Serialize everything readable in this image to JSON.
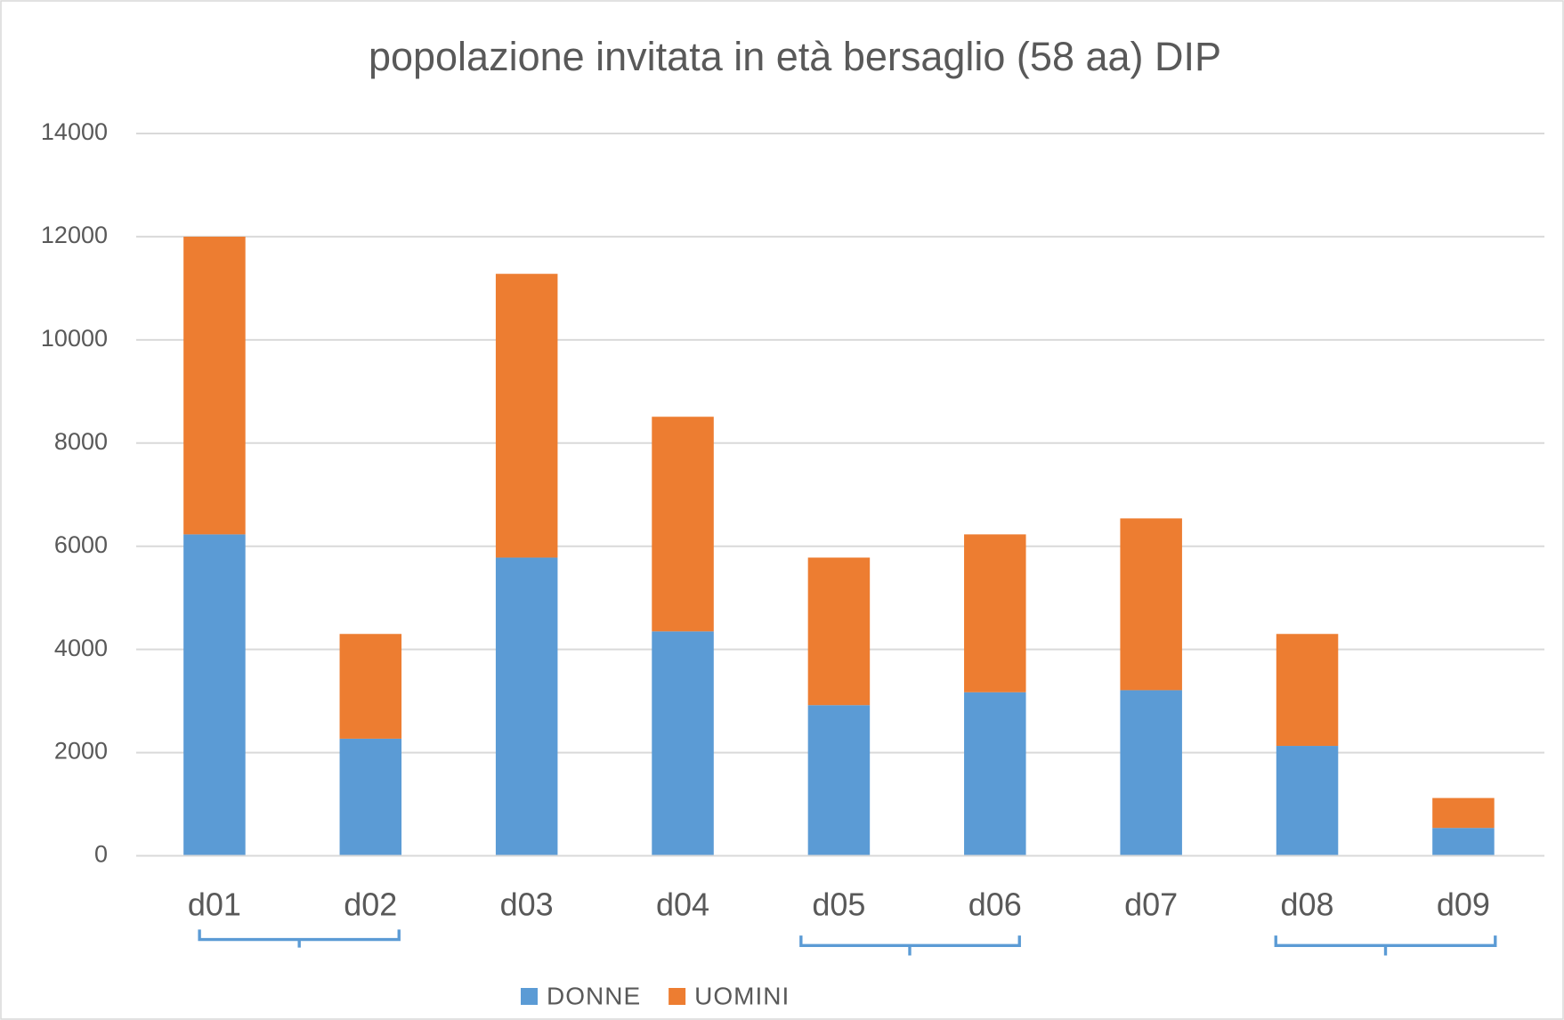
{
  "chart_data": {
    "type": "bar",
    "stacked": true,
    "title": "popolazione invitata in età bersaglio (58 aa) DIP",
    "categories": [
      "d01",
      "d02",
      "d03",
      "d04",
      "d05",
      "d06",
      "d07",
      "d08",
      "d09"
    ],
    "series": [
      {
        "name": "DONNE",
        "color": "#5b9bd5",
        "values": [
          6230,
          2270,
          5780,
          4350,
          2920,
          3170,
          3210,
          2130,
          540
        ]
      },
      {
        "name": "UOMINI",
        "color": "#ed7d31",
        "values": [
          5770,
          2030,
          5500,
          4160,
          2860,
          3060,
          3330,
          2170,
          580
        ]
      }
    ],
    "ylim": [
      0,
      14000
    ],
    "yticks": [
      0,
      2000,
      4000,
      6000,
      8000,
      10000,
      12000,
      14000
    ],
    "grid": true,
    "legend": "bottom"
  }
}
